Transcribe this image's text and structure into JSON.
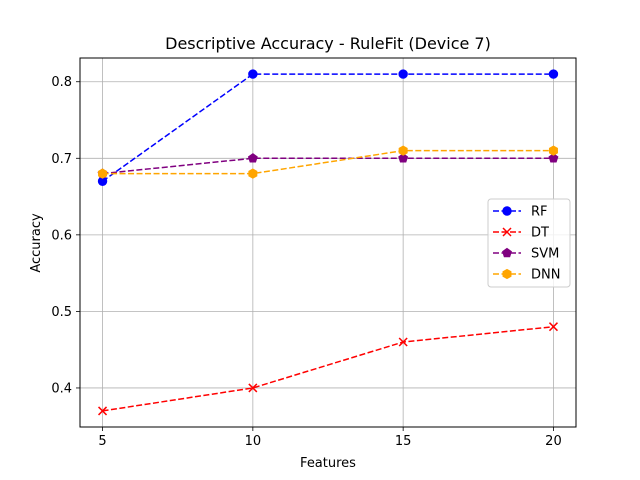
{
  "chart_data": {
    "type": "line",
    "title": "Descriptive Accuracy - RuleFit (Device 7)",
    "xlabel": "Features",
    "ylabel": "Accuracy",
    "x": [
      5,
      10,
      15,
      20
    ],
    "x_ticks": [
      5,
      10,
      15,
      20
    ],
    "y_ticks": [
      0.4,
      0.5,
      0.6,
      0.7,
      0.8
    ],
    "xlim": [
      4.25,
      20.75
    ],
    "ylim": [
      0.349,
      0.831
    ],
    "grid": true,
    "legend_position": "center-right",
    "series": [
      {
        "name": "RF",
        "values": [
          0.67,
          0.81,
          0.81,
          0.81
        ],
        "color": "#0000ff",
        "marker": "circle",
        "linestyle": "dashed"
      },
      {
        "name": "DT",
        "values": [
          0.37,
          0.4,
          0.46,
          0.48
        ],
        "color": "#ff0000",
        "marker": "x",
        "linestyle": "dashed"
      },
      {
        "name": "SVM",
        "values": [
          0.68,
          0.7,
          0.7,
          0.7
        ],
        "color": "#800080",
        "marker": "pentagon",
        "linestyle": "dashed"
      },
      {
        "name": "DNN",
        "values": [
          0.68,
          0.68,
          0.71,
          0.71
        ],
        "color": "#ffa500",
        "marker": "hexagon",
        "linestyle": "dashed"
      }
    ]
  }
}
